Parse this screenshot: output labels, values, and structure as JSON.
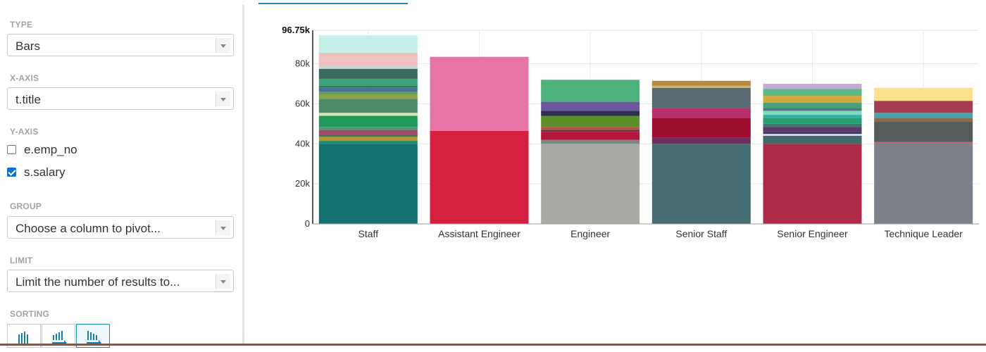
{
  "sidebar": {
    "type": {
      "label": "TYPE",
      "value": "Bars"
    },
    "xaxis": {
      "label": "X-AXIS",
      "value": "t.title"
    },
    "yaxis": {
      "label": "Y-AXIS",
      "options": [
        {
          "label": "e.emp_no",
          "checked": false
        },
        {
          "label": "s.salary",
          "checked": true
        }
      ]
    },
    "group": {
      "label": "GROUP",
      "placeholder": "Choose a column to pivot..."
    },
    "limit": {
      "label": "LIMIT",
      "placeholder": "Limit the number of results to..."
    },
    "sorting": {
      "label": "SORTING",
      "buttons": [
        {
          "icon": "bar-chart-icon",
          "active": false
        },
        {
          "icon": "sort-desc-icon",
          "active": false
        },
        {
          "icon": "sort-asc-icon",
          "active": true
        }
      ]
    }
  },
  "chart_data": {
    "type": "bar",
    "stacked": true,
    "categories": [
      "Staff",
      "Assistant Engineer",
      "Engineer",
      "Senior Staff",
      "Senior Engineer",
      "Technique Leader"
    ],
    "y_tick_labels": [
      "0",
      "20k",
      "40k",
      "60k",
      "80k",
      "96.75k"
    ],
    "ylim": [
      0,
      96750
    ],
    "grid": true,
    "bars": [
      {
        "category": "Staff",
        "segments": [
          {
            "value": 40000,
            "color": "#137170"
          },
          {
            "value": 1500,
            "color": "#228b6b"
          },
          {
            "value": 2000,
            "color": "#b8962e"
          },
          {
            "value": 1000,
            "color": "#3e7a5a"
          },
          {
            "value": 2500,
            "color": "#a34a6a"
          },
          {
            "value": 1500,
            "color": "#3f9e72"
          },
          {
            "value": 5500,
            "color": "#1f9a5a"
          },
          {
            "value": 1500,
            "color": "#d8e3b0"
          },
          {
            "value": 7000,
            "color": "#4f8a6a"
          },
          {
            "value": 2000,
            "color": "#8aa63a"
          },
          {
            "value": 1500,
            "color": "#6a9a5a"
          },
          {
            "value": 2000,
            "color": "#4a6ea0"
          },
          {
            "value": 1000,
            "color": "#2a7a5a"
          },
          {
            "value": 3500,
            "color": "#3aa07a"
          },
          {
            "value": 5000,
            "color": "#3b6b60"
          },
          {
            "value": 1500,
            "color": "#c8d8d0"
          },
          {
            "value": 6500,
            "color": "#f0c0c0"
          },
          {
            "value": 8750,
            "color": "#c7efe9"
          }
        ]
      },
      {
        "category": "Assistant Engineer",
        "segments": [
          {
            "value": 46500,
            "color": "#d41f3f"
          },
          {
            "value": 37000,
            "color": "#e674a4"
          }
        ]
      },
      {
        "category": "Engineer",
        "segments": [
          {
            "value": 40000,
            "color": "#a8aaa5"
          },
          {
            "value": 2000,
            "color": "#7f8784"
          },
          {
            "value": 4000,
            "color": "#b4163d"
          },
          {
            "value": 1000,
            "color": "#762f46"
          },
          {
            "value": 1500,
            "color": "#b05a40"
          },
          {
            "value": 5500,
            "color": "#5b8f2a"
          },
          {
            "value": 2500,
            "color": "#2e2e4e"
          },
          {
            "value": 4500,
            "color": "#6f56a0"
          },
          {
            "value": 11000,
            "color": "#4db27c"
          }
        ]
      },
      {
        "category": "Senior Staff",
        "segments": [
          {
            "value": 40000,
            "color": "#456d72"
          },
          {
            "value": 3000,
            "color": "#6f2c5c"
          },
          {
            "value": 10000,
            "color": "#9c0f2f"
          },
          {
            "value": 5000,
            "color": "#b7306a"
          },
          {
            "value": 10000,
            "color": "#5b6a70"
          },
          {
            "value": 1000,
            "color": "#c8b57a"
          },
          {
            "value": 2500,
            "color": "#b88a3a"
          }
        ]
      },
      {
        "category": "Senior Engineer",
        "segments": [
          {
            "value": 40000,
            "color": "#ae2b4a"
          },
          {
            "value": 4000,
            "color": "#3e6a6a"
          },
          {
            "value": 1000,
            "color": "#ccd8e8"
          },
          {
            "value": 1000,
            "color": "#3f2f60"
          },
          {
            "value": 2500,
            "color": "#5a3a6a"
          },
          {
            "value": 1500,
            "color": "#3a7a6a"
          },
          {
            "value": 3000,
            "color": "#27a073"
          },
          {
            "value": 1500,
            "color": "#2fb0a0"
          },
          {
            "value": 2000,
            "color": "#7fd8c0"
          },
          {
            "value": 1500,
            "color": "#4a7a7a"
          },
          {
            "value": 2500,
            "color": "#4aa07a"
          },
          {
            "value": 3500,
            "color": "#d1a93a"
          },
          {
            "value": 3500,
            "color": "#5fb88a"
          },
          {
            "value": 2500,
            "color": "#c8a8d8"
          }
        ]
      },
      {
        "category": "Technique Leader",
        "segments": [
          {
            "value": 40500,
            "color": "#7a838a"
          },
          {
            "value": 500,
            "color": "#c05a70"
          },
          {
            "value": 10000,
            "color": "#535c5a"
          },
          {
            "value": 2000,
            "color": "#8a6a50"
          },
          {
            "value": 2500,
            "color": "#4aa3a8"
          },
          {
            "value": 6000,
            "color": "#a33e52"
          },
          {
            "value": 6500,
            "color": "#fde08a"
          }
        ]
      }
    ]
  }
}
